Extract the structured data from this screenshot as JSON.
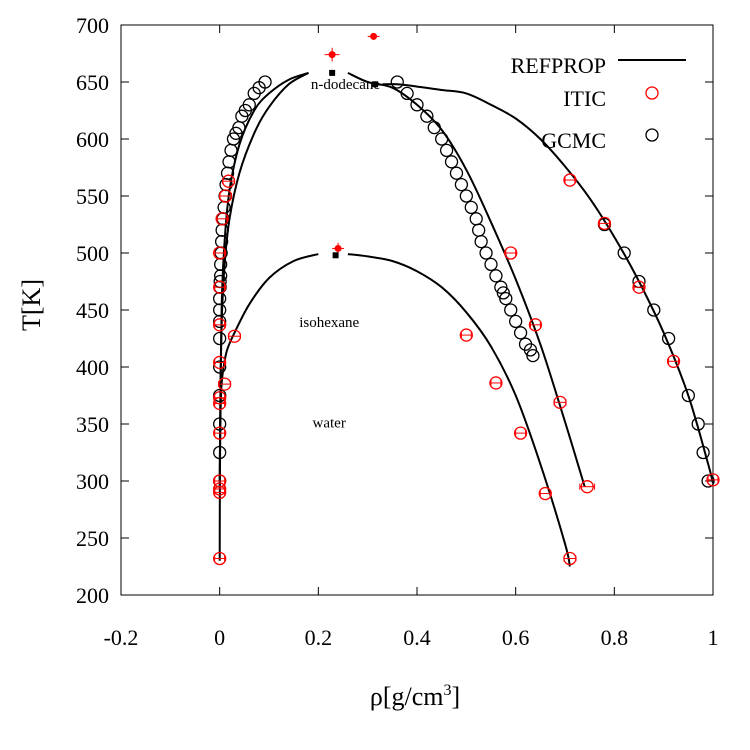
{
  "chart_data": {
    "type": "scatter",
    "xlabel": "ρ[g/cm3]",
    "xlabel_main": "ρ[g/cm",
    "xlabel_sup": "3",
    "xlabel_end": "]",
    "ylabel": "T[K]",
    "xlim": [
      -0.2,
      1.0
    ],
    "ylim": [
      200,
      700
    ],
    "xticks": [
      -0.2,
      0,
      0.2,
      0.4,
      0.6,
      0.8,
      1.0
    ],
    "xtick_labels": [
      "-0.2",
      "0",
      "0.2",
      "0.4",
      "0.6",
      "0.8",
      "1"
    ],
    "yticks": [
      200,
      250,
      300,
      350,
      400,
      450,
      500,
      550,
      600,
      650,
      700
    ],
    "ytick_labels": [
      "200",
      "250",
      "300",
      "350",
      "400",
      "450",
      "500",
      "550",
      "600",
      "650",
      "700"
    ],
    "grid": false,
    "legend_position": "top-right",
    "legend": [
      {
        "label": "REFPROP",
        "style": "line",
        "color": "#000000"
      },
      {
        "label": "ITIC",
        "style": "open-circle",
        "color": "#ff0000"
      },
      {
        "label": "GCMC",
        "style": "open-circle",
        "color": "#000000"
      }
    ],
    "annotations": [
      {
        "text": "n-dodecane",
        "x": 0.255,
        "T": 644
      },
      {
        "text": "isohexane",
        "x": 0.222,
        "T": 435
      },
      {
        "text": "water",
        "x": 0.222,
        "T": 347
      }
    ],
    "refprop_curves": [
      {
        "system": "water",
        "rho_vap": [
          0.0,
          0.0005,
          0.001,
          0.002,
          0.004,
          0.008,
          0.015,
          0.03,
          0.06,
          0.1,
          0.15,
          0.2
        ],
        "T_vap": [
          230,
          300,
          340,
          365,
          385,
          400,
          415,
          430,
          455,
          478,
          493,
          499
        ],
        "rho_liq": [
          0.26,
          0.3,
          0.35,
          0.4,
          0.45,
          0.5,
          0.55,
          0.6,
          0.65,
          0.7,
          0.71
        ],
        "T_liq": [
          499,
          497,
          493,
          484,
          470,
          448,
          418,
          375,
          315,
          245,
          225
        ]
      },
      {
        "system": "isohexane",
        "rho_vap": [
          0.0,
          0.002,
          0.005,
          0.01,
          0.02,
          0.04,
          0.07,
          0.1,
          0.14,
          0.18
        ],
        "T_vap": [
          295,
          400,
          450,
          490,
          530,
          570,
          605,
          628,
          648,
          658
        ],
        "rho_liq": [
          0.26,
          0.3,
          0.35,
          0.4,
          0.45,
          0.5,
          0.55,
          0.6,
          0.65,
          0.7,
          0.74
        ],
        "T_liq": [
          658,
          650,
          645,
          630,
          608,
          573,
          527,
          477,
          420,
          352,
          295
        ]
      },
      {
        "system": "n-dodecane",
        "rho_vap": [
          0.0,
          0.004,
          0.01,
          0.02,
          0.04,
          0.07,
          0.1,
          0.14,
          0.18
        ],
        "T_vap": [
          300,
          450,
          510,
          555,
          595,
          625,
          640,
          652,
          658
        ],
        "rho_liq": [
          0.33,
          0.36,
          0.4,
          0.45,
          0.5,
          0.55,
          0.6,
          0.65,
          0.7,
          0.75,
          0.8,
          0.85,
          0.9,
          0.95,
          0.99,
          1.0
        ],
        "T_liq": [
          648,
          648,
          646,
          643,
          640,
          630,
          618,
          600,
          576,
          548,
          514,
          475,
          430,
          375,
          315,
          298
        ]
      }
    ],
    "gcmc": {
      "vapor_x": [
        0.0,
        0.0,
        0.0,
        0.0,
        0.0,
        0.0,
        0.0,
        0.0,
        0.0,
        0.001,
        0.001,
        0.002,
        0.002,
        0.003,
        0.004,
        0.005,
        0.007,
        0.009,
        0.011,
        0.013,
        0.016,
        0.019,
        0.023,
        0.028,
        0.033,
        0.039,
        0.045,
        0.052,
        0.06,
        0.07,
        0.08,
        0.092
      ],
      "vapor_T": [
        300,
        325,
        350,
        375,
        400,
        425,
        440,
        450,
        460,
        470,
        475,
        480,
        490,
        500,
        510,
        520,
        530,
        540,
        550,
        560,
        570,
        580,
        590,
        600,
        605,
        610,
        620,
        625,
        630,
        640,
        645,
        650
      ],
      "liq_x": [
        0.36,
        0.38,
        0.4,
        0.42,
        0.435,
        0.45,
        0.46,
        0.47,
        0.48,
        0.49,
        0.5,
        0.51,
        0.52,
        0.525,
        0.53,
        0.54,
        0.55,
        0.56,
        0.57,
        0.575,
        0.58,
        0.59,
        0.6,
        0.61,
        0.62,
        0.63,
        0.635
      ],
      "liq_T": [
        650,
        640,
        630,
        620,
        610,
        600,
        590,
        580,
        570,
        560,
        550,
        540,
        530,
        520,
        510,
        500,
        490,
        480,
        470,
        465,
        460,
        450,
        440,
        430,
        420,
        415,
        410
      ],
      "dodecane_liq_x": [
        0.78,
        0.82,
        0.85,
        0.88,
        0.91,
        0.95,
        0.97,
        0.98,
        0.99
      ],
      "dodecane_liq_T": [
        525,
        500,
        475,
        450,
        425,
        375,
        350,
        325,
        300
      ]
    },
    "itic_water": {
      "x": [
        0.0,
        0.0,
        0.0,
        0.0,
        0.0,
        0.0,
        0.0,
        0.0,
        0.01,
        0.03,
        0.5,
        0.56,
        0.61,
        0.66,
        0.71
      ],
      "T": [
        232,
        290,
        293,
        300,
        342,
        368,
        373,
        404,
        385,
        427,
        428,
        386,
        342,
        289,
        232
      ],
      "xerr": [
        0.01,
        0.01,
        0.01,
        0.01,
        0.01,
        0.01,
        0.01,
        0.01,
        0.012,
        0.012,
        0.01,
        0.01,
        0.01,
        0.01,
        0.012
      ]
    },
    "itic_isohexane": {
      "x": [
        0.0,
        0.005,
        0.012,
        0.018,
        0.59,
        0.64,
        0.69,
        0.745
      ],
      "T": [
        500,
        530,
        550,
        563,
        500,
        437,
        369,
        295
      ],
      "xerr": [
        0.01,
        0.01,
        0.012,
        0.012,
        0.01,
        0.01,
        0.012,
        0.015
      ]
    },
    "itic_dodecane": {
      "x": [
        0.0,
        0.0,
        0.71,
        0.78,
        0.85,
        0.92,
        1.0
      ],
      "T": [
        437,
        470,
        564,
        526,
        470,
        405,
        301
      ],
      "xerr": [
        0.01,
        0.01,
        0.01,
        0.01,
        0.01,
        0.01,
        0.01
      ]
    },
    "critical_points_itic": {
      "x": [
        0.228,
        0.312,
        0.24
      ],
      "T": [
        674,
        690,
        504
      ],
      "xerr": [
        0.015,
        0.012,
        0.012
      ],
      "yerr": [
        6,
        3,
        5
      ]
    },
    "critical_points_refprop": {
      "x": [
        0.228,
        0.315,
        0.235
      ],
      "T": [
        658,
        648,
        498
      ]
    }
  }
}
